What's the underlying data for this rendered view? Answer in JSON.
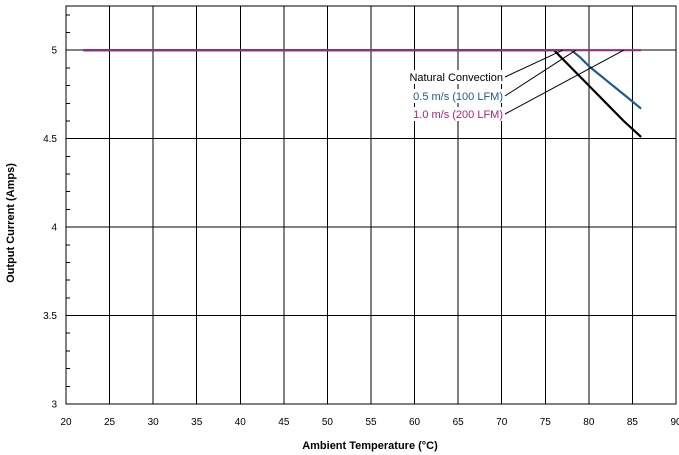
{
  "chart_data": {
    "type": "line",
    "title": "",
    "xlabel": "Ambient Temperature (°C)",
    "ylabel": "Output Current (Amps)",
    "xlim": [
      20,
      90
    ],
    "ylim": [
      3,
      5.25
    ],
    "x_ticks": [
      20,
      25,
      30,
      35,
      40,
      45,
      50,
      55,
      60,
      65,
      70,
      75,
      80,
      85,
      90
    ],
    "y_ticks": [
      3,
      3.5,
      4,
      4.5,
      5
    ],
    "x_tick_labels": [
      "20",
      "25",
      "30",
      "35",
      "40",
      "45",
      "50",
      "55",
      "60",
      "65",
      "70",
      "75",
      "80",
      "85",
      "90"
    ],
    "y_tick_labels": [
      "3",
      "3.5",
      "4",
      "4.5",
      "5"
    ],
    "grid": true,
    "legend_placement": "center-right, with leader lines to each curve",
    "series": [
      {
        "name": "Natural Convection",
        "color": "#000000",
        "x": [
          22,
          76,
          78,
          80,
          82,
          84,
          86
        ],
        "y": [
          5,
          5,
          4.9,
          4.8,
          4.7,
          4.6,
          4.51
        ]
      },
      {
        "name": "0.5 m/s (100 LFM)",
        "color": "#1d5a8e",
        "x": [
          22,
          78,
          79,
          80,
          82,
          84,
          86
        ],
        "y": [
          5,
          5,
          4.96,
          4.91,
          4.83,
          4.75,
          4.67
        ]
      },
      {
        "name": "1.0 m/s (200 LFM)",
        "color": "#a0287a",
        "x": [
          22,
          86
        ],
        "y": [
          5,
          5
        ]
      }
    ]
  }
}
